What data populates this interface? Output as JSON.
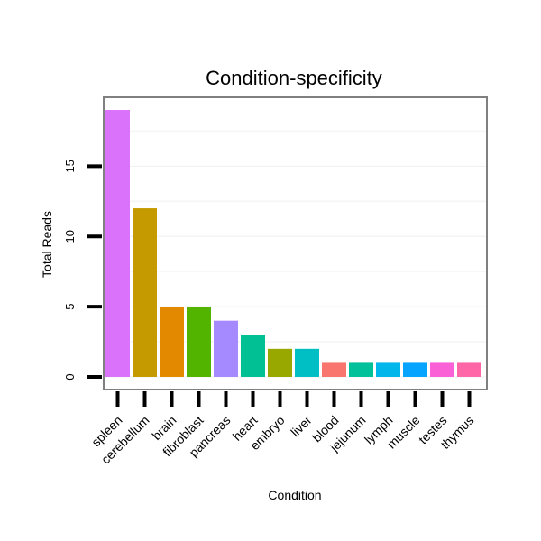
{
  "chart_data": {
    "type": "bar",
    "title": "Condition-specificity",
    "xlabel": "Condition",
    "ylabel": "Total Reads",
    "categories": [
      "spleen",
      "cerebellum",
      "brain",
      "fibroblast",
      "pancreas",
      "heart",
      "embryo",
      "liver",
      "blood",
      "jejunum",
      "lymph",
      "muscle",
      "testes",
      "thymus"
    ],
    "values": [
      19,
      12,
      5,
      5,
      4,
      3,
      2,
      2,
      1,
      1,
      1,
      1,
      1,
      1
    ],
    "colors": [
      "#DB72FB",
      "#C49A00",
      "#E38900",
      "#53B400",
      "#A58AFF",
      "#00C094",
      "#99A800",
      "#00BFC4",
      "#F8766D",
      "#00C19A",
      "#00B6EB",
      "#06A4FF",
      "#FB61D7",
      "#FF66A8"
    ],
    "ylim": [
      -0.9,
      19.9
    ],
    "yticks": [
      0,
      5,
      10,
      15
    ],
    "ytick_labels": [
      "0",
      "5",
      "10",
      "15"
    ],
    "grid": true,
    "legend": "none"
  }
}
